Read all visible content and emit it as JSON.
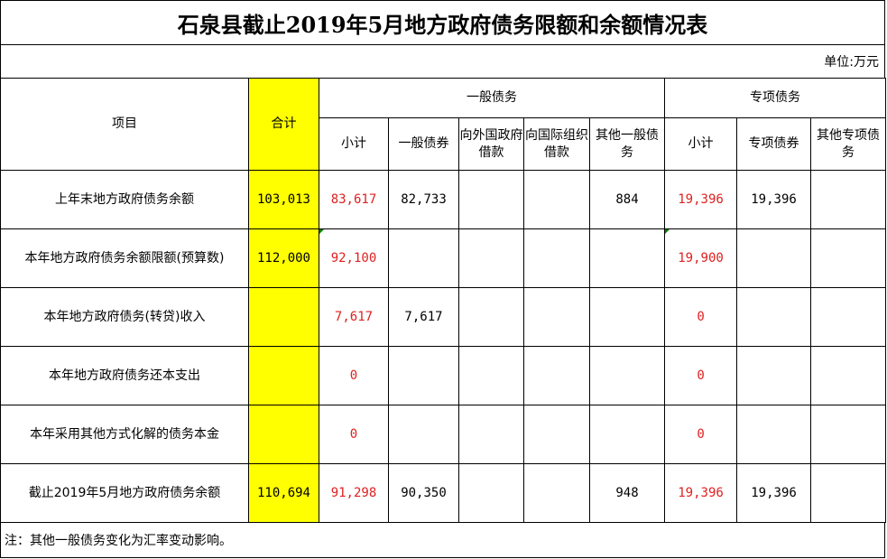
{
  "title": "石泉县截止2019年5月地方政府债务限额和余额情况表",
  "unit": "单位:万元",
  "headers": {
    "item": "项目",
    "total": "合计",
    "general_group": "一般债务",
    "special_group": "专项债务",
    "general_cols": [
      "小计",
      "一般债券",
      "向外国政府借款",
      "向国际组织借款",
      "其他一般债务"
    ],
    "special_cols": [
      "小计",
      "专项债券",
      "其他专项债务"
    ]
  },
  "rows": [
    {
      "label": "上年末地方政府债务余额",
      "total": "103,013",
      "g_sub": "83,617",
      "g_bond": "82,733",
      "g_foreign": "",
      "g_intl": "",
      "g_other": "884",
      "s_sub": "19,396",
      "s_bond": "19,396",
      "s_other": ""
    },
    {
      "label": "本年地方政府债务余额限额(预算数)",
      "total": "112,000",
      "g_sub": "92,100",
      "g_bond": "",
      "g_foreign": "",
      "g_intl": "",
      "g_other": "",
      "s_sub": "19,900",
      "s_bond": "",
      "s_other": ""
    },
    {
      "label": "本年地方政府债务(转贷)收入",
      "total": "",
      "g_sub": "7,617",
      "g_bond": "7,617",
      "g_foreign": "",
      "g_intl": "",
      "g_other": "",
      "s_sub": "0",
      "s_bond": "",
      "s_other": ""
    },
    {
      "label": "本年地方政府债务还本支出",
      "total": "",
      "g_sub": "0",
      "g_bond": "",
      "g_foreign": "",
      "g_intl": "",
      "g_other": "",
      "s_sub": "0",
      "s_bond": "",
      "s_other": ""
    },
    {
      "label": "本年采用其他方式化解的债务本金",
      "total": "",
      "g_sub": "0",
      "g_bond": "",
      "g_foreign": "",
      "g_intl": "",
      "g_other": "",
      "s_sub": "0",
      "s_bond": "",
      "s_other": ""
    },
    {
      "label": "截止2019年5月地方政府债务余额",
      "total": "110,694",
      "g_sub": "91,298",
      "g_bond": "90,350",
      "g_foreign": "",
      "g_intl": "",
      "g_other": "948",
      "s_sub": "19,396",
      "s_bond": "19,396",
      "s_other": ""
    }
  ],
  "note": "注：其他一般债务变化为汇率变动影响。",
  "colors": {
    "highlight": "#ffff00",
    "red_text": "#e02020"
  }
}
